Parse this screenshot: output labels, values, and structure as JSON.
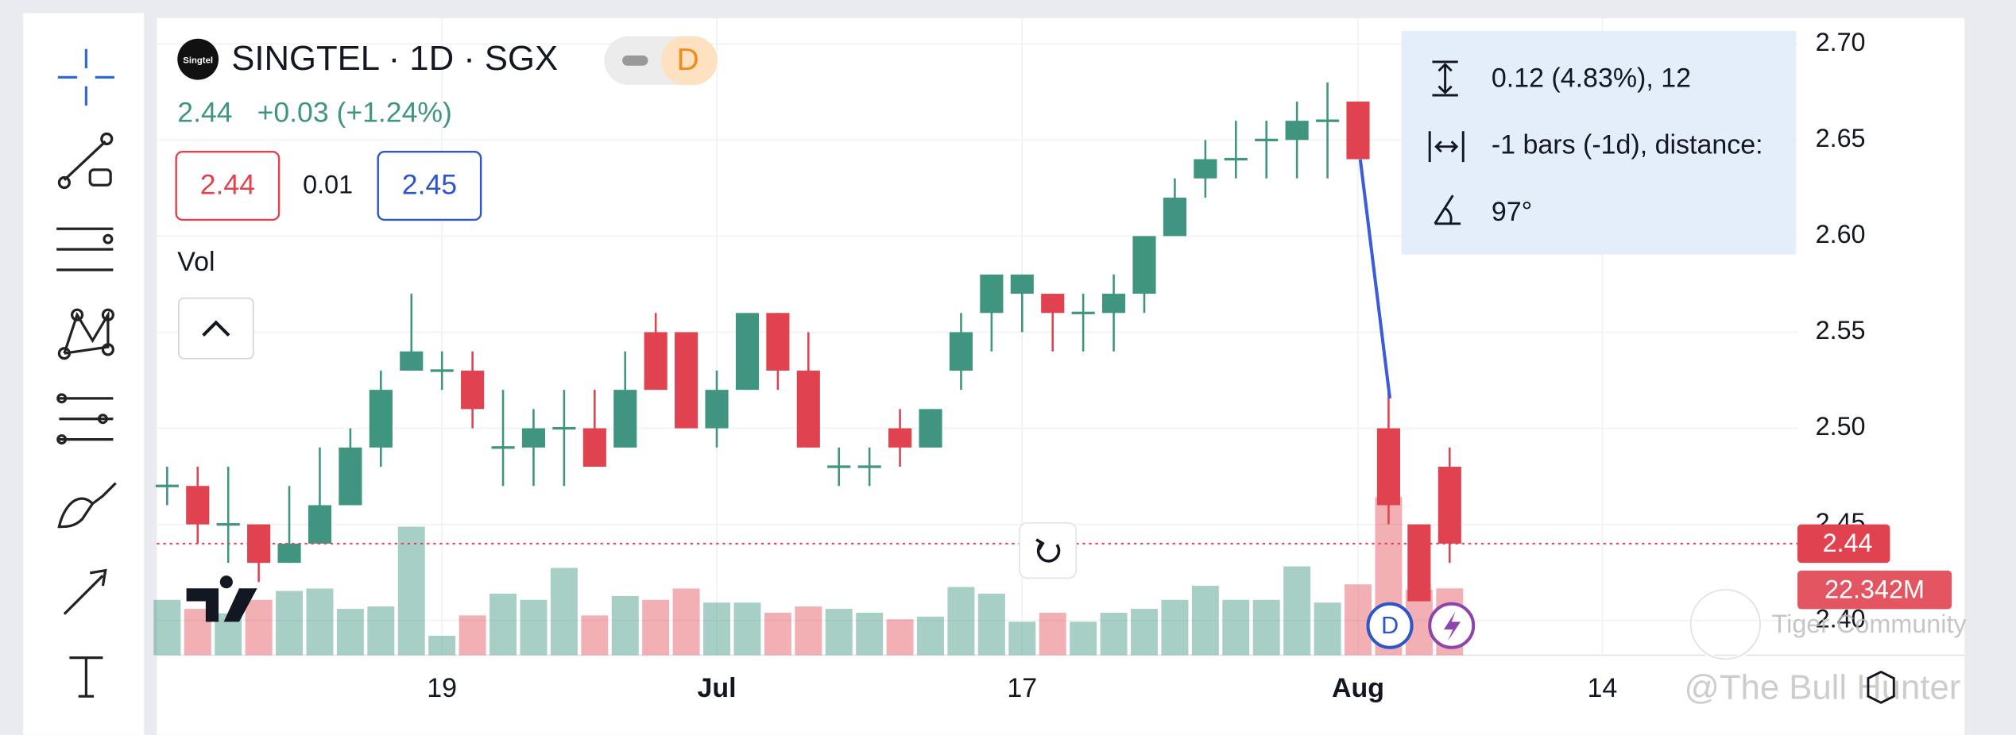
{
  "chart_data": {
    "type": "candlestick",
    "title": "SINGTEL · 1D · SGX",
    "logo_text": "Singtel",
    "timeframe_badge": "D",
    "last_text": "2.44",
    "change_text": "+0.03 (+1.24%)",
    "bid": "2.44",
    "spread": "0.01",
    "ask": "2.45",
    "volume_title": "Vol",
    "up_color": "#3f9580",
    "down_color": "#e0434f",
    "open": [
      2.47,
      2.47,
      2.45,
      2.45,
      2.43,
      2.44,
      2.46,
      2.49,
      2.53,
      2.53,
      2.53,
      2.49,
      2.49,
      2.5,
      2.5,
      2.49,
      2.55,
      2.55,
      2.5,
      2.52,
      2.56,
      2.53,
      2.48,
      2.48,
      2.5,
      2.49,
      2.53,
      2.56,
      2.57,
      2.57,
      2.56,
      2.56,
      2.57,
      2.6,
      2.63,
      2.64,
      2.65,
      2.65,
      2.66,
      2.67,
      2.5,
      2.45,
      2.48
    ],
    "high": [
      2.48,
      2.48,
      2.48,
      2.45,
      2.47,
      2.49,
      2.5,
      2.53,
      2.57,
      2.54,
      2.54,
      2.52,
      2.51,
      2.52,
      2.52,
      2.54,
      2.56,
      2.55,
      2.53,
      2.56,
      2.56,
      2.55,
      2.49,
      2.49,
      2.51,
      2.51,
      2.56,
      2.58,
      2.58,
      2.57,
      2.57,
      2.58,
      2.6,
      2.63,
      2.65,
      2.66,
      2.66,
      2.67,
      2.68,
      2.67,
      2.52,
      2.45,
      2.49
    ],
    "low": [
      2.46,
      2.44,
      2.43,
      2.42,
      2.43,
      2.44,
      2.46,
      2.48,
      2.53,
      2.52,
      2.5,
      2.47,
      2.47,
      2.47,
      2.48,
      2.49,
      2.52,
      2.5,
      2.49,
      2.52,
      2.52,
      2.49,
      2.47,
      2.47,
      2.48,
      2.49,
      2.52,
      2.54,
      2.55,
      2.54,
      2.54,
      2.54,
      2.56,
      2.6,
      2.62,
      2.63,
      2.63,
      2.63,
      2.63,
      2.64,
      2.45,
      2.41,
      2.43
    ],
    "close": [
      2.47,
      2.45,
      2.45,
      2.43,
      2.44,
      2.46,
      2.49,
      2.52,
      2.54,
      2.53,
      2.51,
      2.49,
      2.5,
      2.5,
      2.48,
      2.52,
      2.52,
      2.5,
      2.52,
      2.56,
      2.53,
      2.49,
      2.48,
      2.48,
      2.49,
      2.51,
      2.55,
      2.58,
      2.58,
      2.56,
      2.56,
      2.57,
      2.6,
      2.62,
      2.64,
      2.64,
      2.65,
      2.66,
      2.66,
      2.64,
      2.46,
      2.41,
      2.44
    ],
    "volume": [
      18.5,
      15.5,
      14,
      18.5,
      21.5,
      22.3,
      15.5,
      16.3,
      43,
      6.5,
      13.3,
      20.6,
      18.5,
      29.2,
      13.3,
      19.8,
      18.5,
      22.3,
      17.6,
      17.6,
      14.2,
      16.3,
      15.5,
      14.2,
      12,
      12.9,
      22.8,
      20.6,
      11.2,
      14.2,
      11.2,
      14.2,
      15.5,
      18.5,
      23.2,
      18.5,
      18.5,
      29.7,
      17.6,
      23.7,
      52.9,
      21.9,
      22.342
    ],
    "x_labels": [
      {
        "index": 9,
        "label": "19"
      },
      {
        "index": 18,
        "label": "Jul"
      },
      {
        "index": 28,
        "label": "17"
      },
      {
        "index": 39,
        "label": "Aug"
      },
      {
        "index": 47,
        "label": "14"
      }
    ],
    "ylim": [
      2.3868,
      2.7227
    ],
    "yticks": [
      {
        "value": 2.4,
        "label": "2.40"
      },
      {
        "value": 2.45,
        "label": "2.45"
      },
      {
        "value": 2.5,
        "label": "2.50"
      },
      {
        "value": 2.55,
        "label": "2.55"
      },
      {
        "value": 2.6,
        "label": "2.60"
      },
      {
        "value": 2.65,
        "label": "2.65"
      },
      {
        "value": 2.7,
        "label": "2.70"
      }
    ],
    "last_price": {
      "value": 2.44,
      "label": "2.44"
    },
    "volume_label": "22.342M",
    "grid": true,
    "measure": [
      "0.12 (4.83%), 12",
      "-1 bars (-1d), distance:",
      "97°"
    ],
    "markers": [
      "D"
    ]
  },
  "watermark": [
    "Tiger Community",
    "@The Bull Hunter"
  ]
}
